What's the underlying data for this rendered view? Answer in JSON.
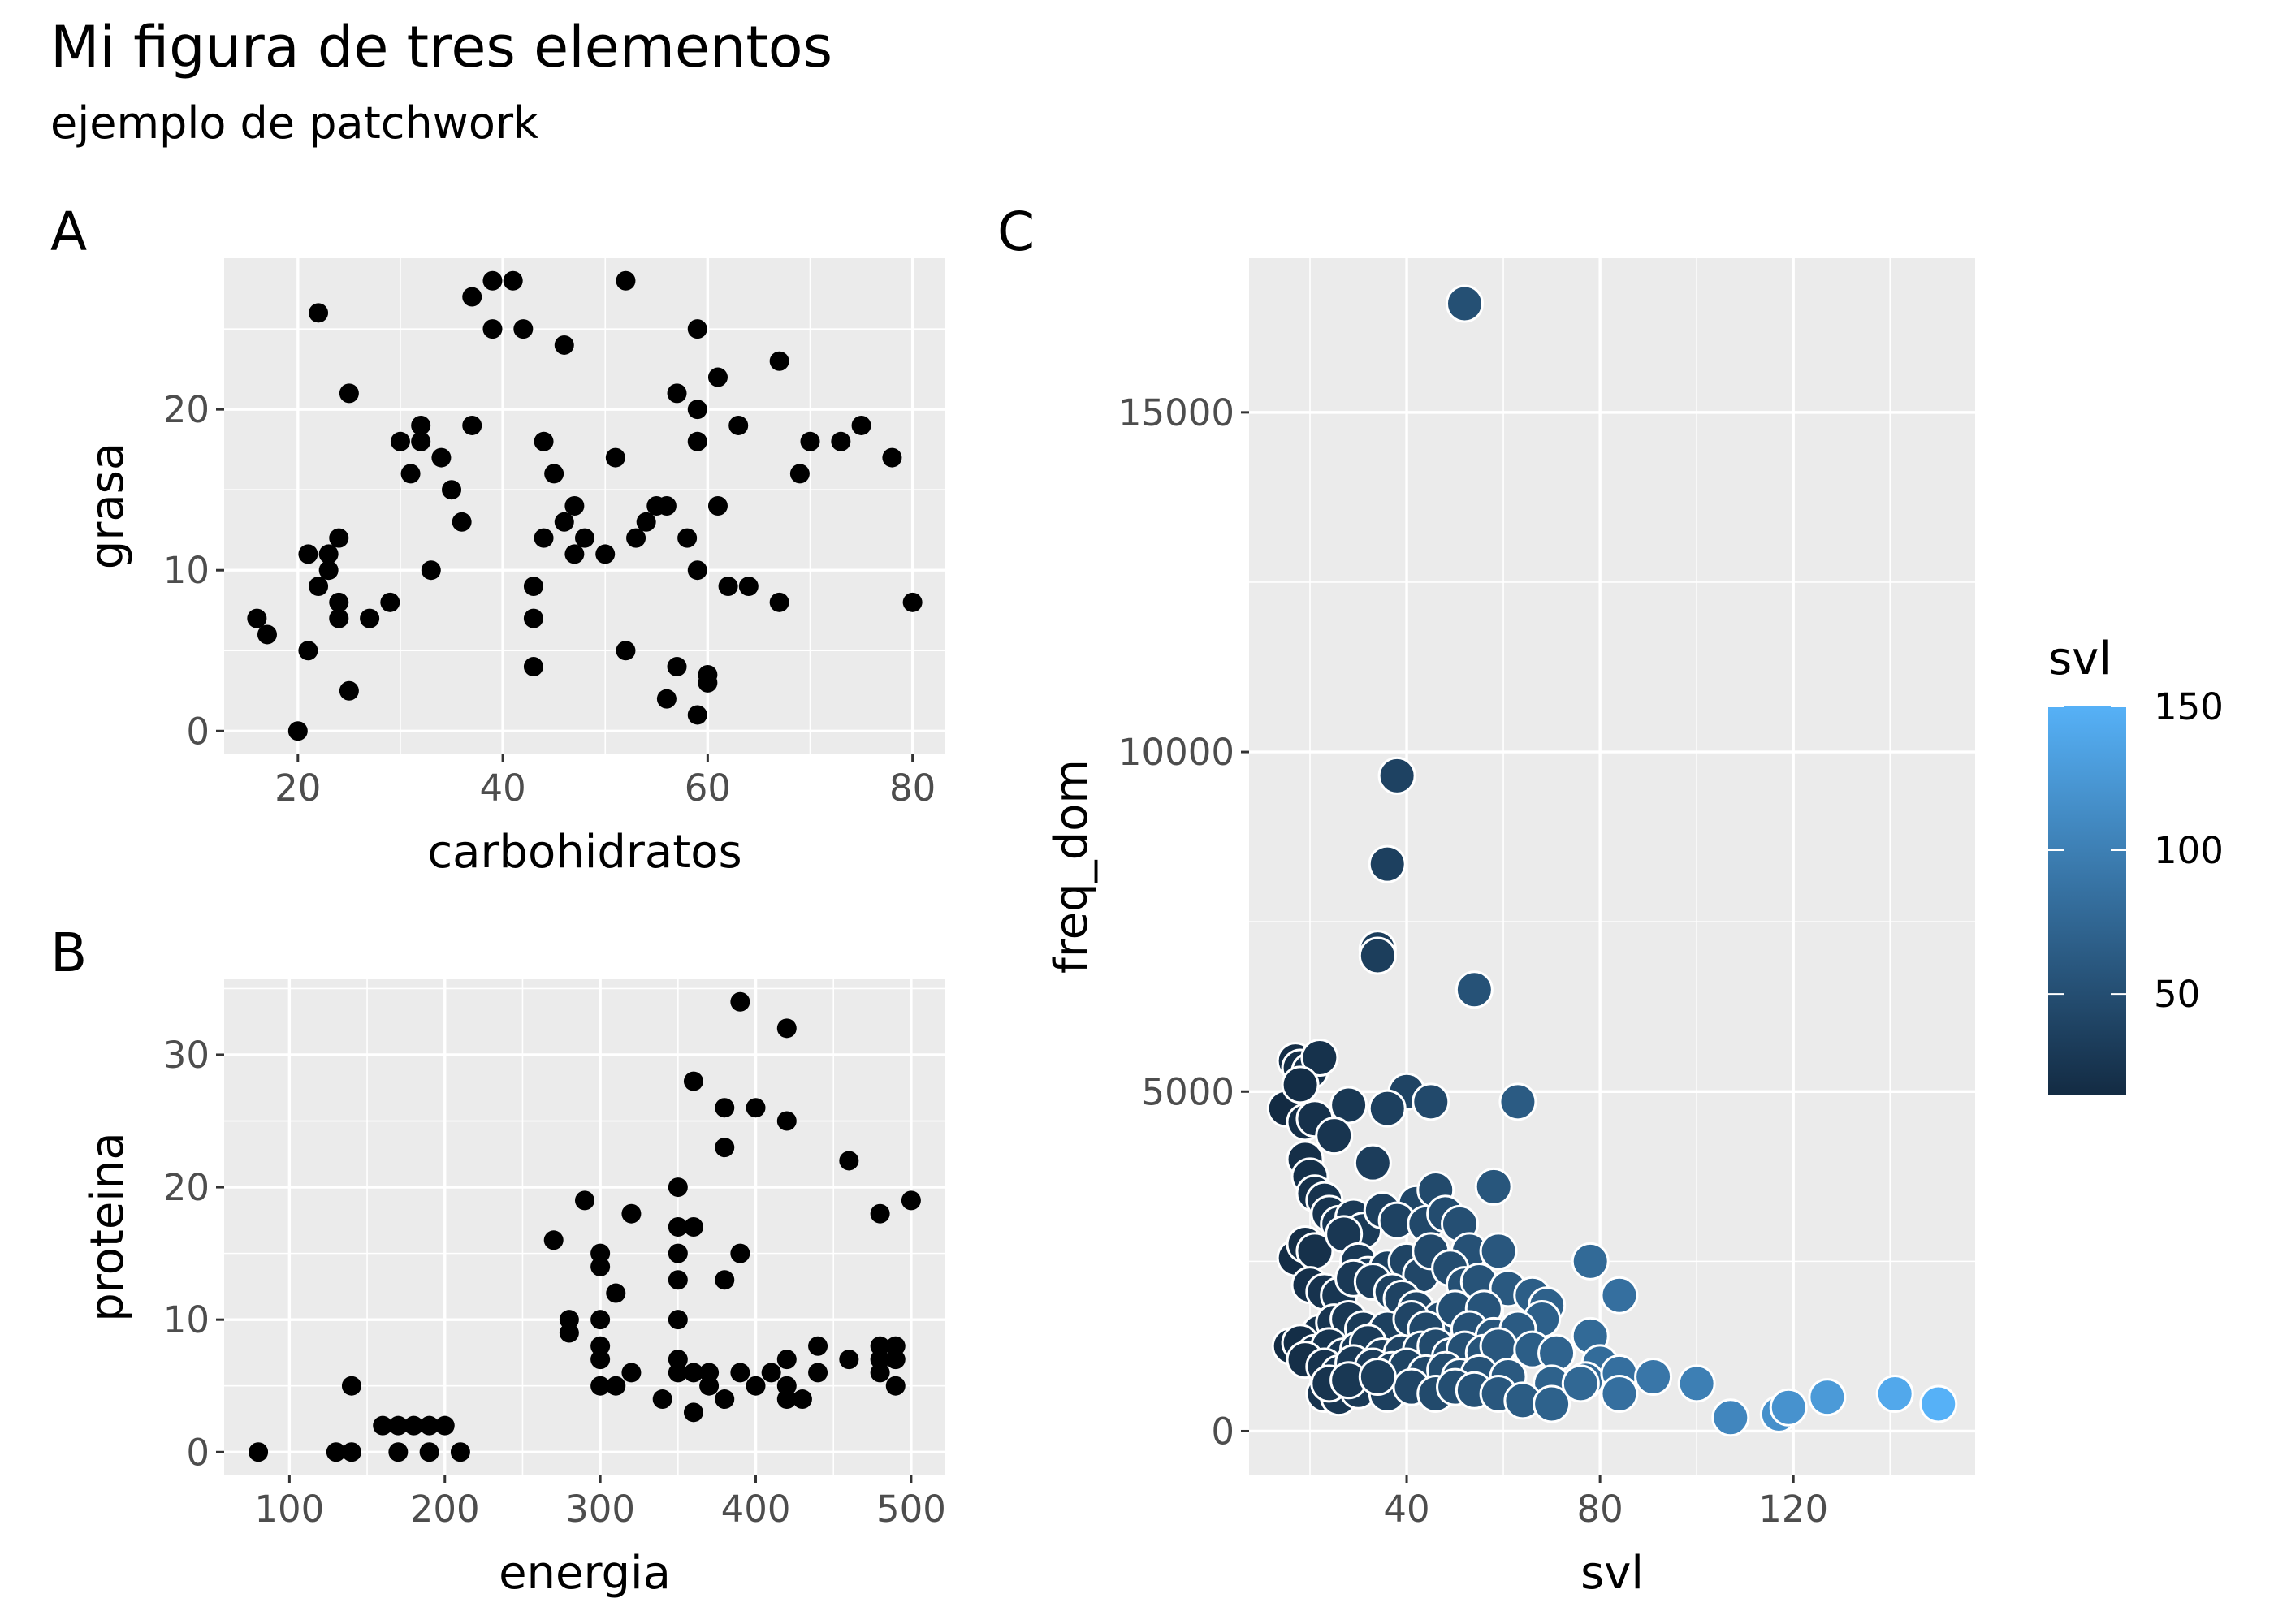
{
  "figure": {
    "title": "Mi figura de tres elementos",
    "subtitle": "ejemplo de patchwork"
  },
  "colors": {
    "panel_bg": "#ebebeb",
    "grid_major": "#ffffff",
    "point": "#000000",
    "tick_text": "#4d4d4d",
    "gradient_low": "#132b43",
    "gradient_high": "#56b1f7",
    "point_outline": "#ffffff"
  },
  "chart_data": [
    {
      "tag": "A",
      "type": "scatter",
      "xlabel": "carbohidratos",
      "ylabel": "grasa",
      "xlim": [
        12.8,
        83.2
      ],
      "ylim": [
        -1.4,
        29.4
      ],
      "xticks": [
        20,
        40,
        60,
        80
      ],
      "yticks": [
        0,
        10,
        20
      ],
      "grid": true,
      "points": [
        [
          16,
          7
        ],
        [
          17,
          6
        ],
        [
          20,
          0
        ],
        [
          21,
          11
        ],
        [
          21,
          5
        ],
        [
          22,
          26
        ],
        [
          22,
          9
        ],
        [
          23,
          10
        ],
        [
          23,
          11
        ],
        [
          24,
          12
        ],
        [
          24,
          8
        ],
        [
          24,
          7
        ],
        [
          25,
          21
        ],
        [
          25,
          2.5
        ],
        [
          27,
          7
        ],
        [
          29,
          8
        ],
        [
          30,
          18
        ],
        [
          31,
          16
        ],
        [
          32,
          19
        ],
        [
          32,
          18
        ],
        [
          33,
          10
        ],
        [
          34,
          17
        ],
        [
          35,
          15
        ],
        [
          36,
          13
        ],
        [
          37,
          27
        ],
        [
          37,
          19
        ],
        [
          39,
          28
        ],
        [
          39,
          25
        ],
        [
          41,
          28
        ],
        [
          42,
          25
        ],
        [
          43,
          9
        ],
        [
          43,
          7
        ],
        [
          43,
          4
        ],
        [
          44,
          18
        ],
        [
          44,
          12
        ],
        [
          45,
          16
        ],
        [
          46,
          24
        ],
        [
          46,
          13
        ],
        [
          47,
          14
        ],
        [
          47,
          11
        ],
        [
          48,
          12
        ],
        [
          50,
          11
        ],
        [
          51,
          17
        ],
        [
          52,
          28
        ],
        [
          52,
          5
        ],
        [
          53,
          12
        ],
        [
          54,
          13
        ],
        [
          55,
          14
        ],
        [
          56,
          14
        ],
        [
          56,
          2
        ],
        [
          57,
          21
        ],
        [
          57,
          4
        ],
        [
          58,
          12
        ],
        [
          59,
          25
        ],
        [
          59,
          20
        ],
        [
          59,
          18
        ],
        [
          59,
          10
        ],
        [
          59,
          1
        ],
        [
          60,
          3.5
        ],
        [
          60,
          3
        ],
        [
          61,
          22
        ],
        [
          61,
          14
        ],
        [
          62,
          9
        ],
        [
          63,
          19
        ],
        [
          64,
          9
        ],
        [
          67,
          23
        ],
        [
          67,
          8
        ],
        [
          69,
          16
        ],
        [
          70,
          18
        ],
        [
          73,
          18
        ],
        [
          75,
          19
        ],
        [
          78,
          17
        ],
        [
          80,
          8
        ]
      ]
    },
    {
      "tag": "B",
      "type": "scatter",
      "xlabel": "energia",
      "ylabel": "proteina",
      "xlim": [
        58,
        522
      ],
      "ylim": [
        -1.7,
        35.7
      ],
      "xticks": [
        100,
        200,
        300,
        400,
        500
      ],
      "yticks": [
        0,
        10,
        20,
        30
      ],
      "grid": true,
      "points": [
        [
          80,
          0
        ],
        [
          130,
          0
        ],
        [
          140,
          0
        ],
        [
          140,
          5
        ],
        [
          160,
          2
        ],
        [
          170,
          2
        ],
        [
          170,
          0
        ],
        [
          180,
          2
        ],
        [
          190,
          2
        ],
        [
          190,
          0
        ],
        [
          200,
          2
        ],
        [
          210,
          0
        ],
        [
          270,
          16
        ],
        [
          280,
          10
        ],
        [
          280,
          9
        ],
        [
          290,
          19
        ],
        [
          300,
          15
        ],
        [
          300,
          14
        ],
        [
          300,
          10
        ],
        [
          300,
          8
        ],
        [
          300,
          7
        ],
        [
          300,
          5
        ],
        [
          310,
          12
        ],
        [
          310,
          5
        ],
        [
          320,
          18
        ],
        [
          320,
          6
        ],
        [
          340,
          4
        ],
        [
          350,
          20
        ],
        [
          350,
          17
        ],
        [
          350,
          15
        ],
        [
          350,
          13
        ],
        [
          350,
          10
        ],
        [
          350,
          7
        ],
        [
          350,
          6
        ],
        [
          360,
          28
        ],
        [
          360,
          17
        ],
        [
          360,
          6
        ],
        [
          360,
          3
        ],
        [
          370,
          6
        ],
        [
          370,
          5
        ],
        [
          380,
          26
        ],
        [
          380,
          23
        ],
        [
          380,
          13
        ],
        [
          380,
          4
        ],
        [
          390,
          34
        ],
        [
          390,
          15
        ],
        [
          390,
          6
        ],
        [
          400,
          26
        ],
        [
          400,
          5
        ],
        [
          410,
          6
        ],
        [
          420,
          32
        ],
        [
          420,
          25
        ],
        [
          420,
          7
        ],
        [
          420,
          5
        ],
        [
          420,
          4
        ],
        [
          430,
          4
        ],
        [
          440,
          8
        ],
        [
          440,
          6
        ],
        [
          460,
          22
        ],
        [
          460,
          7
        ],
        [
          480,
          18
        ],
        [
          480,
          8
        ],
        [
          480,
          7
        ],
        [
          480,
          6
        ],
        [
          490,
          8
        ],
        [
          490,
          7
        ],
        [
          490,
          5
        ],
        [
          500,
          19
        ]
      ]
    },
    {
      "tag": "C",
      "type": "scatter",
      "xlabel": "svl",
      "ylabel": "freq_dom",
      "xlim": [
        7.4,
        157.6
      ],
      "ylim": [
        -640,
        17270
      ],
      "xticks": [
        40,
        80,
        120
      ],
      "yticks": [
        0,
        5000,
        10000,
        15000
      ],
      "grid": true,
      "color_scale": {
        "variable": "svl",
        "domain": [
          15,
          150
        ],
        "breaks": [
          50,
          100,
          150
        ],
        "legend_title": "svl",
        "legend_position": "right"
      },
      "points": [
        [
          52,
          16600
        ],
        [
          38,
          9650
        ],
        [
          36,
          8350
        ],
        [
          34,
          7100
        ],
        [
          34,
          7000
        ],
        [
          54,
          6500
        ],
        [
          17,
          5450
        ],
        [
          18,
          5350
        ],
        [
          20,
          5300
        ],
        [
          22,
          5500
        ],
        [
          40,
          5000
        ],
        [
          45,
          4850
        ],
        [
          63,
          4850
        ],
        [
          15,
          4750
        ],
        [
          28,
          4800
        ],
        [
          36,
          4750
        ],
        [
          18,
          5100
        ],
        [
          19,
          4550
        ],
        [
          21,
          4600
        ],
        [
          25,
          4350
        ],
        [
          19,
          4000
        ],
        [
          20,
          3750
        ],
        [
          21,
          3500
        ],
        [
          23,
          3400
        ],
        [
          33,
          3950
        ],
        [
          42,
          3350
        ],
        [
          46,
          3550
        ],
        [
          58,
          3600
        ],
        [
          24,
          3200
        ],
        [
          26,
          3050
        ],
        [
          29,
          3150
        ],
        [
          31,
          2950
        ],
        [
          35,
          3250
        ],
        [
          38,
          3100
        ],
        [
          44,
          3050
        ],
        [
          48,
          3200
        ],
        [
          51,
          3050
        ],
        [
          53,
          2650
        ],
        [
          59,
          2650
        ],
        [
          78,
          2500
        ],
        [
          17,
          2550
        ],
        [
          19,
          2750
        ],
        [
          21,
          2650
        ],
        [
          27,
          2900
        ],
        [
          30,
          2500
        ],
        [
          32,
          2300
        ],
        [
          36,
          2400
        ],
        [
          40,
          2500
        ],
        [
          43,
          2300
        ],
        [
          45,
          2650
        ],
        [
          49,
          2400
        ],
        [
          52,
          2150
        ],
        [
          55,
          2200
        ],
        [
          61,
          2100
        ],
        [
          66,
          2000
        ],
        [
          69,
          1850
        ],
        [
          84,
          2000
        ],
        [
          20,
          2150
        ],
        [
          23,
          2050
        ],
        [
          26,
          2000
        ],
        [
          29,
          2250
        ],
        [
          33,
          2200
        ],
        [
          37,
          2050
        ],
        [
          39,
          1950
        ],
        [
          42,
          1800
        ],
        [
          47,
          1650
        ],
        [
          50,
          1800
        ],
        [
          56,
          1800
        ],
        [
          68,
          1650
        ],
        [
          22,
          1450
        ],
        [
          25,
          1600
        ],
        [
          28,
          1650
        ],
        [
          31,
          1500
        ],
        [
          34,
          1350
        ],
        [
          36,
          1500
        ],
        [
          41,
          1650
        ],
        [
          44,
          1500
        ],
        [
          53,
          1500
        ],
        [
          58,
          1400
        ],
        [
          63,
          1500
        ],
        [
          78,
          1400
        ],
        [
          16,
          1250
        ],
        [
          18,
          1300
        ],
        [
          21,
          1150
        ],
        [
          24,
          1250
        ],
        [
          27,
          1100
        ],
        [
          30,
          1200
        ],
        [
          32,
          1300
        ],
        [
          35,
          1100
        ],
        [
          39,
          1150
        ],
        [
          43,
          1200
        ],
        [
          46,
          1250
        ],
        [
          49,
          1100
        ],
        [
          52,
          1200
        ],
        [
          56,
          1150
        ],
        [
          59,
          1250
        ],
        [
          66,
          1200
        ],
        [
          71,
          1150
        ],
        [
          80,
          1000
        ],
        [
          19,
          1050
        ],
        [
          23,
          950
        ],
        [
          26,
          850
        ],
        [
          29,
          1000
        ],
        [
          33,
          950
        ],
        [
          37,
          900
        ],
        [
          40,
          950
        ],
        [
          44,
          850
        ],
        [
          48,
          900
        ],
        [
          51,
          800
        ],
        [
          55,
          850
        ],
        [
          61,
          800
        ],
        [
          70,
          700
        ],
        [
          77,
          750
        ],
        [
          84,
          850
        ],
        [
          91,
          800
        ],
        [
          100,
          700
        ],
        [
          23,
          550
        ],
        [
          26,
          500
        ],
        [
          30,
          600
        ],
        [
          36,
          550
        ],
        [
          41,
          650
        ],
        [
          46,
          550
        ],
        [
          50,
          650
        ],
        [
          54,
          600
        ],
        [
          59,
          550
        ],
        [
          64,
          450
        ],
        [
          70,
          400
        ],
        [
          76,
          700
        ],
        [
          84,
          550
        ],
        [
          107,
          200
        ],
        [
          117,
          250
        ],
        [
          119,
          350
        ],
        [
          127,
          500
        ],
        [
          141,
          550
        ],
        [
          150,
          400
        ],
        [
          24,
          700
        ],
        [
          28,
          750
        ],
        [
          34,
          800
        ]
      ]
    }
  ]
}
